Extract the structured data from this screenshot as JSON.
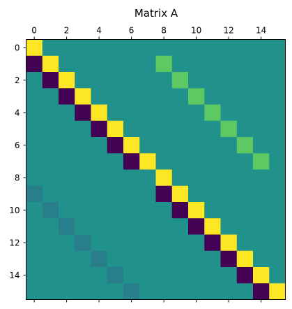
{
  "chart_data": {
    "type": "heatmap",
    "title": "Matrix A",
    "xlabel": "",
    "ylabel": "",
    "colormap": "viridis",
    "color_range": [
      -1,
      1
    ],
    "rows": 16,
    "cols": 16,
    "x_ticks": [
      0,
      2,
      4,
      6,
      8,
      10,
      12,
      14
    ],
    "x_tick_labels": [
      "0",
      "2",
      "4",
      "6",
      "8",
      "10",
      "12",
      "14"
    ],
    "x_ticks_position": "top",
    "y_ticks": [
      0,
      2,
      4,
      6,
      8,
      10,
      12,
      14
    ],
    "y_tick_labels": [
      "0",
      "2",
      "4",
      "6",
      "8",
      "10",
      "12",
      "14"
    ],
    "grid": false,
    "values": [
      [
        1,
        0,
        0,
        0,
        0,
        0,
        0,
        0,
        0,
        0,
        0,
        0,
        0,
        0,
        0,
        0
      ],
      [
        -1,
        1,
        0,
        0,
        0,
        0,
        0,
        0,
        0.5,
        0,
        0,
        0,
        0,
        0,
        0,
        0
      ],
      [
        0,
        -1,
        1,
        0,
        0,
        0,
        0,
        0,
        0,
        0.5,
        0,
        0,
        0,
        0,
        0,
        0
      ],
      [
        0,
        0,
        -1,
        1,
        0,
        0,
        0,
        0,
        0,
        0,
        0.5,
        0,
        0,
        0,
        0,
        0
      ],
      [
        0,
        0,
        0,
        -1,
        1,
        0,
        0,
        0,
        0,
        0,
        0,
        0.5,
        0,
        0,
        0,
        0
      ],
      [
        0,
        0,
        0,
        0,
        -1,
        1,
        0,
        0,
        0,
        0,
        0,
        0,
        0.5,
        0,
        0,
        0
      ],
      [
        0,
        0,
        0,
        0,
        0,
        -1,
        1,
        0,
        0,
        0,
        0,
        0,
        0,
        0.5,
        0,
        0
      ],
      [
        0,
        0,
        0,
        0,
        0,
        0,
        -1,
        1,
        0,
        0,
        0,
        0,
        0,
        0,
        0.5,
        0
      ],
      [
        0,
        0,
        0,
        0,
        0,
        0,
        0,
        0,
        1,
        0,
        0,
        0,
        0,
        0,
        0,
        0
      ],
      [
        -0.15,
        0,
        0,
        0,
        0,
        0,
        0,
        0,
        -1,
        1,
        0,
        0,
        0,
        0,
        0,
        0
      ],
      [
        0,
        -0.15,
        0,
        0,
        0,
        0,
        0,
        0,
        0,
        -1,
        1,
        0,
        0,
        0,
        0,
        0
      ],
      [
        0,
        0,
        -0.15,
        0,
        0,
        0,
        0,
        0,
        0,
        0,
        -1,
        1,
        0,
        0,
        0,
        0
      ],
      [
        0,
        0,
        0,
        -0.15,
        0,
        0,
        0,
        0,
        0,
        0,
        0,
        -1,
        1,
        0,
        0,
        0
      ],
      [
        0,
        0,
        0,
        0,
        -0.15,
        0,
        0,
        0,
        0,
        0,
        0,
        0,
        -1,
        1,
        0,
        0
      ],
      [
        0,
        0,
        0,
        0,
        0,
        -0.15,
        0,
        0,
        0,
        0,
        0,
        0,
        0,
        -1,
        1,
        0
      ],
      [
        0,
        0,
        0,
        0,
        0,
        0,
        -0.15,
        0,
        0,
        0,
        0,
        0,
        0,
        0,
        -1,
        1
      ]
    ]
  }
}
